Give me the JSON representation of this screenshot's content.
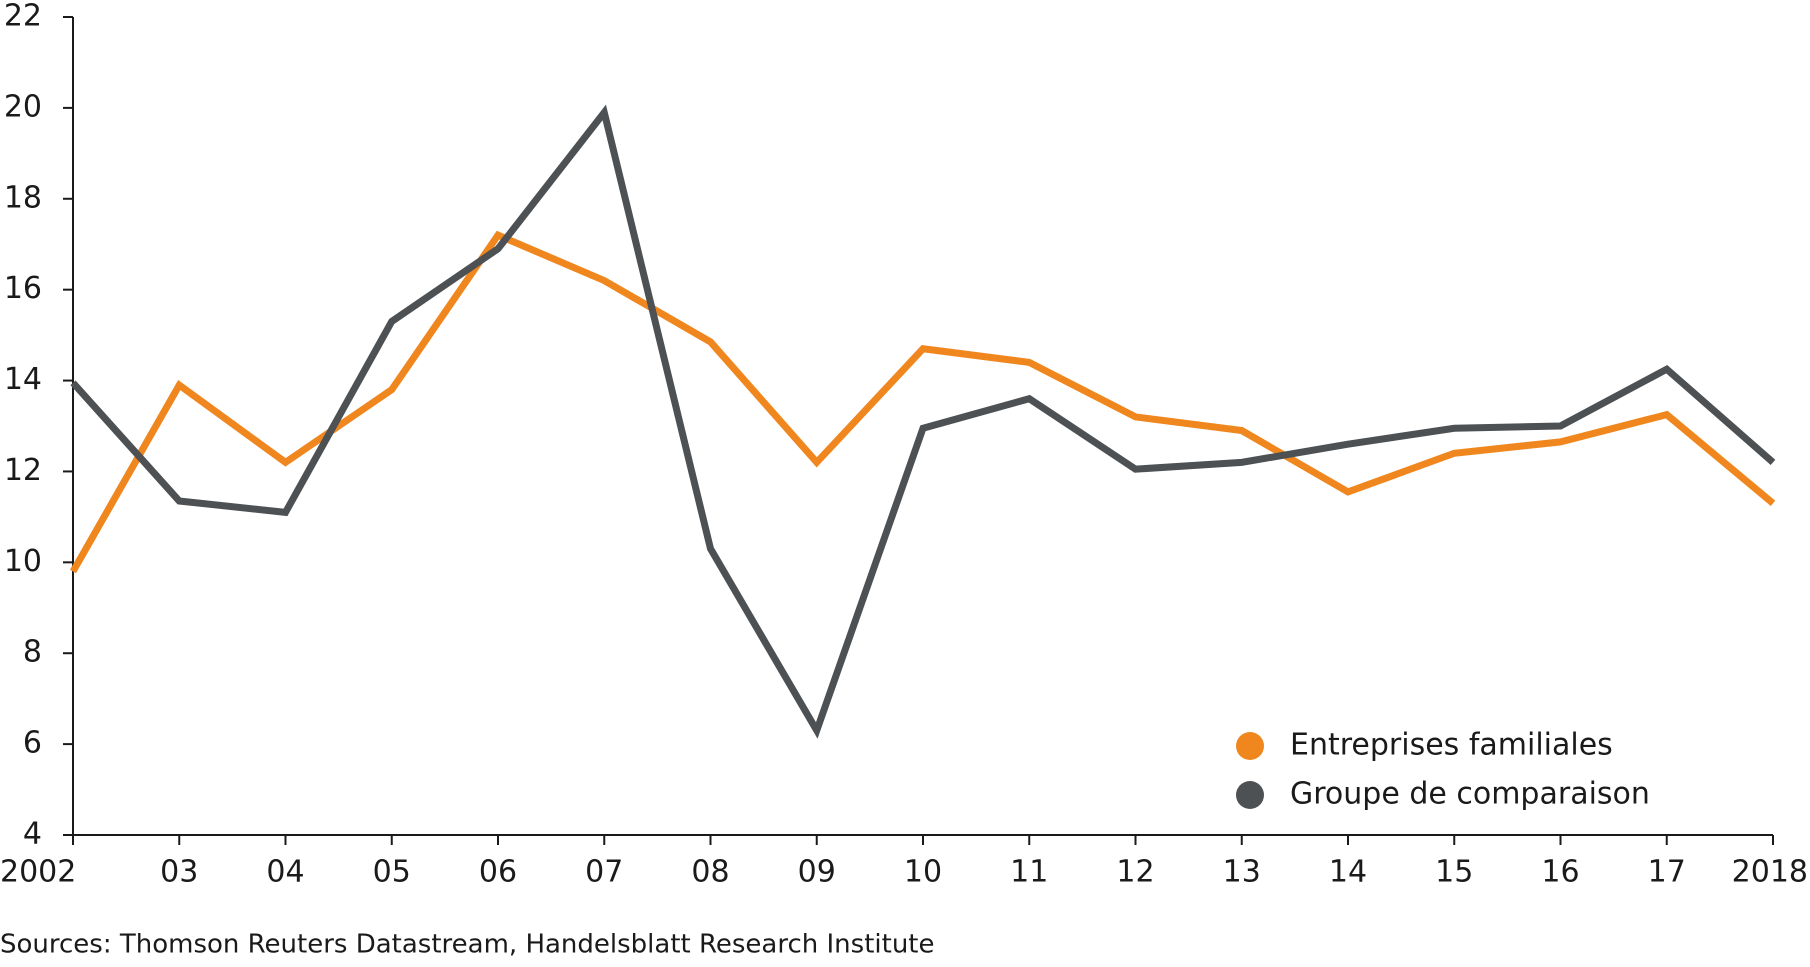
{
  "chart_data": {
    "type": "line",
    "categories": [
      "2002",
      "03",
      "04",
      "05",
      "06",
      "07",
      "08",
      "09",
      "10",
      "11",
      "12",
      "13",
      "14",
      "15",
      "16",
      "17",
      "2018"
    ],
    "series": [
      {
        "name": "Entreprises familiales",
        "color": "#f0861e",
        "values": [
          9.8,
          13.9,
          12.2,
          13.8,
          17.2,
          16.2,
          14.85,
          12.2,
          14.7,
          14.4,
          13.2,
          12.9,
          11.55,
          12.4,
          12.65,
          13.25,
          11.3
        ]
      },
      {
        "name": "Groupe de comparaison",
        "color": "#4d5154",
        "values": [
          13.95,
          11.35,
          11.1,
          15.3,
          16.9,
          19.9,
          10.3,
          6.3,
          12.95,
          13.6,
          12.05,
          12.2,
          12.6,
          12.95,
          13.0,
          14.25,
          12.2
        ]
      }
    ],
    "ylim": [
      4,
      22
    ],
    "yticks": [
      4,
      6,
      8,
      10,
      12,
      14,
      16,
      18,
      20,
      22
    ],
    "grid": false,
    "legend_position": "bottom-right",
    "source": "Sources: Thomson Reuters Datastream, Handelsblatt Research Institute"
  }
}
